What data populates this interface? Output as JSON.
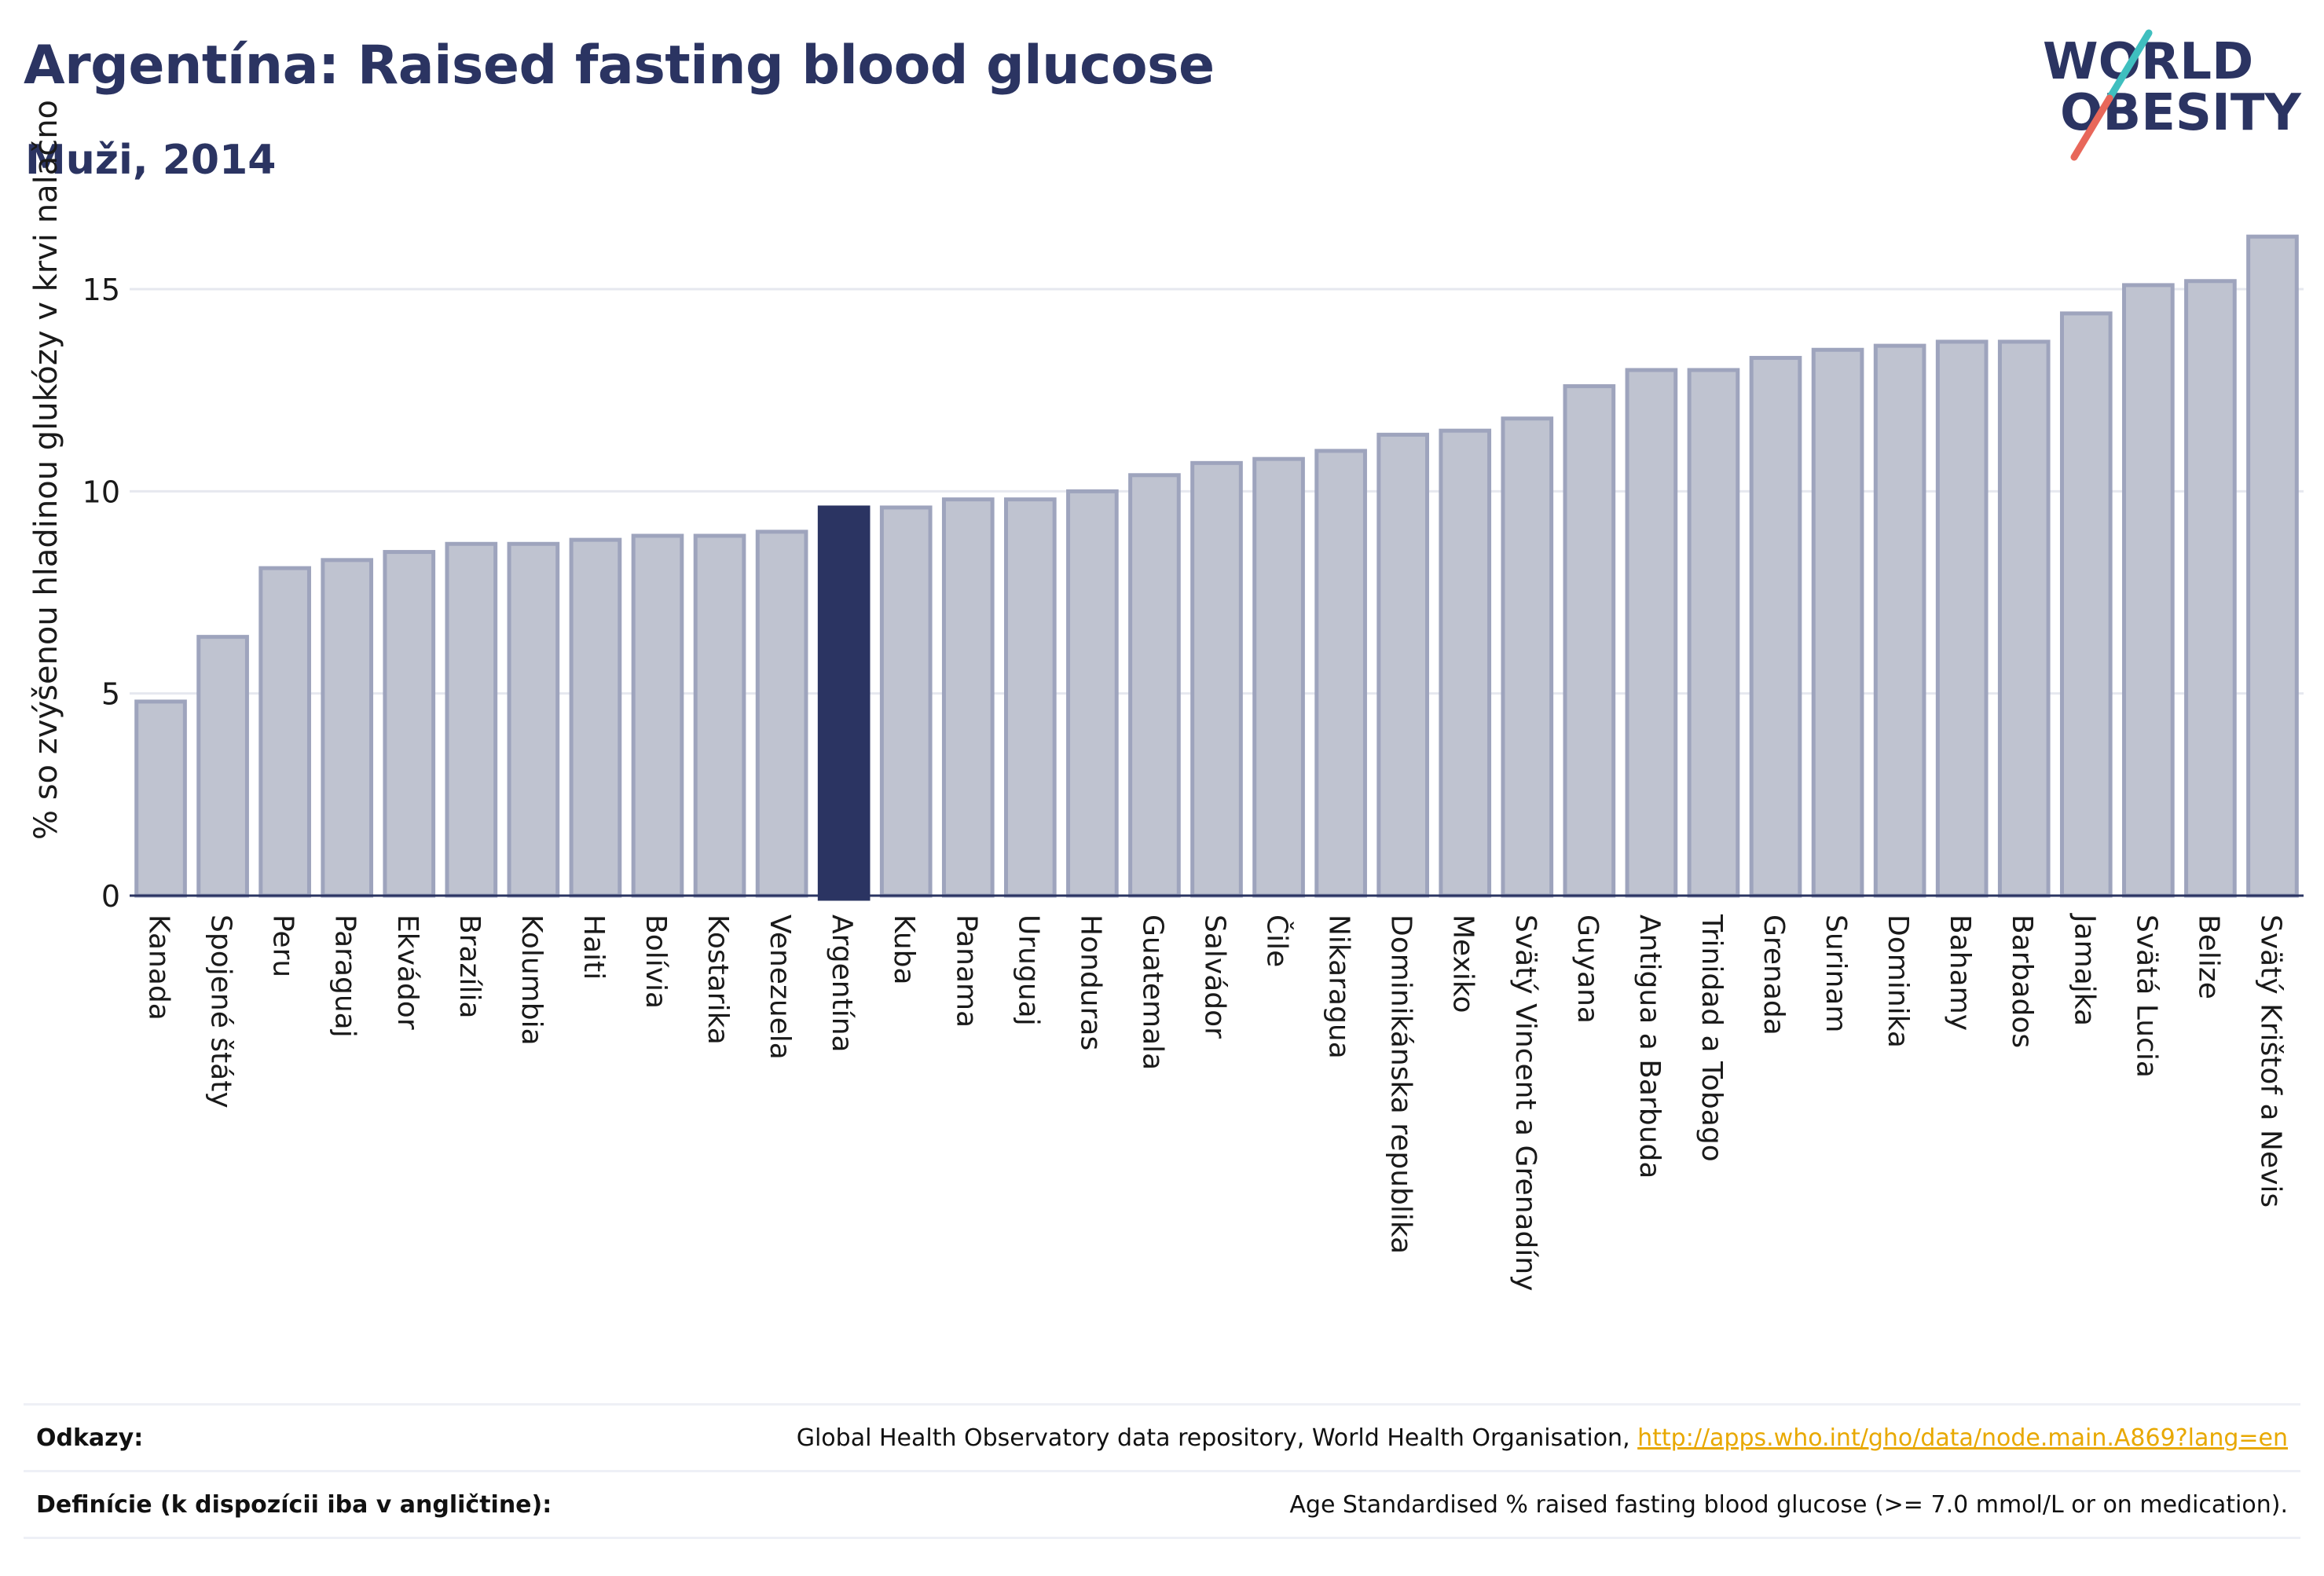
{
  "header": {
    "title": "Argentína: Raised fasting blood glucose",
    "subtitle": "Muži, 2014"
  },
  "logo": {
    "line1": "WORLD",
    "line2": "OBESITY",
    "accent_colors": [
      "#3fbfbf",
      "#e8675a"
    ]
  },
  "colors": {
    "bar_default": "#bfc3d0",
    "bar_default_border": "#9ea4bd",
    "bar_highlight": "#2b3462",
    "text": "#2b3462",
    "grid": "#e6e8ef"
  },
  "chart_data": {
    "type": "bar",
    "title": "",
    "ylabel": "% so zvýšenou hladinou glukózy v krvi nalačno",
    "xlabel": "",
    "ylim": [
      0,
      16.4
    ],
    "yticks": [
      0,
      5,
      10,
      15
    ],
    "grid": true,
    "highlight": "Argentína",
    "categories": [
      "Kanada",
      "Spojené štáty",
      "Peru",
      "Paraguaj",
      "Ekvádor",
      "Brazília",
      "Kolumbia",
      "Haiti",
      "Bolívia",
      "Kostarika",
      "Venezuela",
      "Argentína",
      "Kuba",
      "Panama",
      "Uruguaj",
      "Honduras",
      "Guatemala",
      "Salvádor",
      "Čile",
      "Nikaragua",
      "Dominikánska republika",
      "Mexiko",
      "Svätý Vincent a Grenadíny",
      "Guyana",
      "Antigua a Barbuda",
      "Trinidad a Tobago",
      "Grenada",
      "Surinam",
      "Dominika",
      "Bahamy",
      "Barbados",
      "Jamajka",
      "Svätá Lucia",
      "Belize",
      "Svätý Krištof a Nevis"
    ],
    "values": [
      4.8,
      6.4,
      8.1,
      8.3,
      8.5,
      8.7,
      8.7,
      8.8,
      8.9,
      8.9,
      9.0,
      9.6,
      9.6,
      9.8,
      9.8,
      10.0,
      10.4,
      10.7,
      10.8,
      11.0,
      11.4,
      11.5,
      11.8,
      12.6,
      13.0,
      13.0,
      13.3,
      13.5,
      13.6,
      13.7,
      13.7,
      14.4,
      15.1,
      15.2,
      16.3
    ]
  },
  "footer": {
    "sources_label": "Odkazy:",
    "sources_text": "Global Health Observatory data repository, World Health Organisation, ",
    "sources_link": "http://apps.who.int/gho/data/node.main.A869?lang=en",
    "definition_label": "Definície (k dispozícii iba v angličtine):",
    "definition_text": "Age Standardised % raised fasting blood glucose (>= 7.0 mmol/L or on medication)."
  }
}
